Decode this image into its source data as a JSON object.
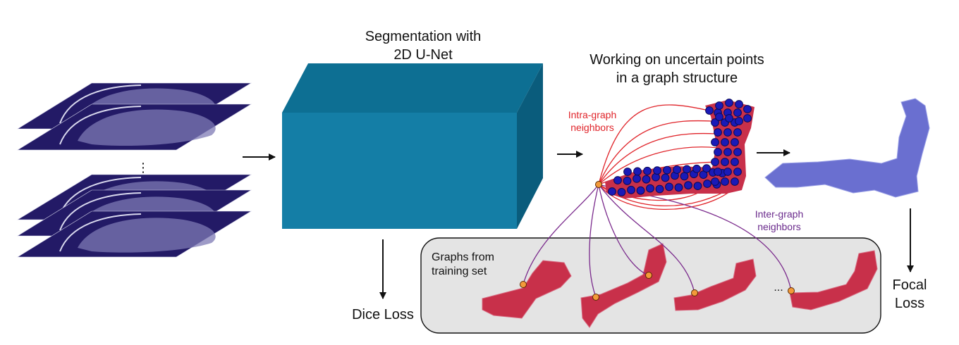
{
  "labels": {
    "seg_line1": "Segmentation with",
    "seg_line2": "2D U-Net",
    "working_line1": "Working on uncertain points",
    "working_line2": "in a graph structure",
    "intra_line1": "Intra-graph",
    "intra_line2": "neighbors",
    "inter_line1": "Inter-graph",
    "inter_line2": "neighbors",
    "graphs_line1": "Graphs from",
    "graphs_line2": "training set",
    "dice_loss": "Dice Loss",
    "focal_line1": "Focal",
    "focal_line2": "Loss",
    "vdots": "⋮",
    "ellipsis": "..."
  },
  "colors": {
    "slice": "#231a66",
    "box_front": "#147ea6",
    "box_top": "#0d6f93",
    "box_side": "#0a5c7c",
    "node": "#1a1ab8",
    "node_outline": "#0a0a55",
    "blob_red": "#c8304a",
    "blob_blue": "#6a6fd0",
    "orange": "#f39a3a",
    "intra": "#e0242a",
    "inter": "#7a2a8c",
    "panel": "#e4e4e4"
  }
}
